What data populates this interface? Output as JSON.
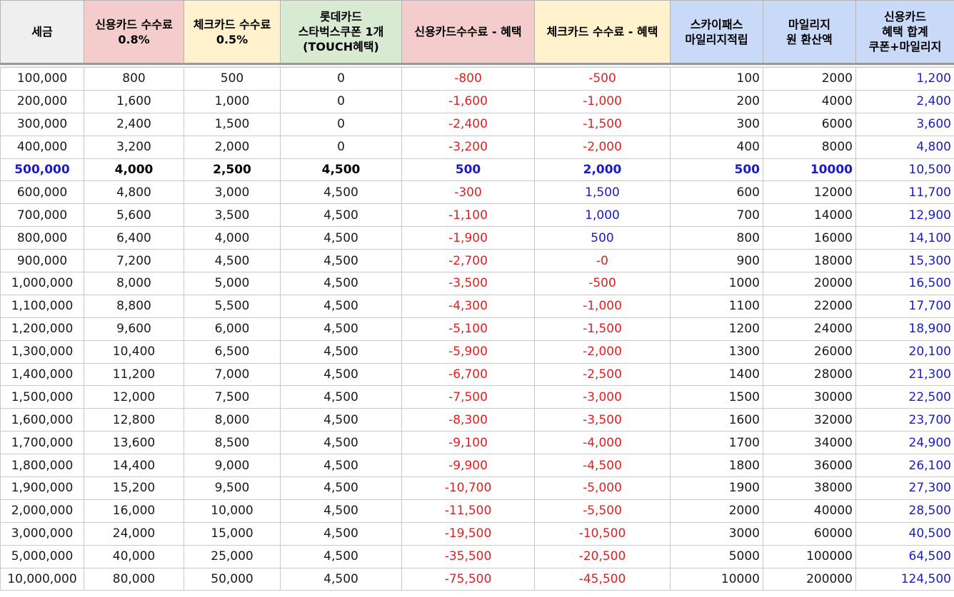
{
  "header": {
    "bg_colors": [
      "#efefef",
      "#f4cccc",
      "#fff2cc",
      "#d9ead3",
      "#f4cccc",
      "#fff2cc",
      "#c9daf8",
      "#c9daf8",
      "#c9daf8"
    ],
    "columns": [
      {
        "lines": [
          "세금"
        ]
      },
      {
        "lines": [
          "신용카드 수수료",
          "0.8%"
        ]
      },
      {
        "lines": [
          "체크카드 수수료",
          "0.5%"
        ]
      },
      {
        "lines": [
          "롯데카드",
          "스타벅스쿠폰 1개",
          "(TOUCH혜택)"
        ]
      },
      {
        "lines": [
          "신용카드수수료 - 혜택"
        ]
      },
      {
        "lines": [
          "체크카드 수수료 - 혜택"
        ]
      },
      {
        "lines": [
          "스카이패스",
          "마일리지적립"
        ]
      },
      {
        "lines": [
          "마일리지",
          "원 환산액"
        ]
      },
      {
        "lines": [
          "신용카드",
          "혜택 합계",
          "쿠폰+마일리지"
        ]
      }
    ]
  },
  "rows": [
    [
      "100,000",
      "800",
      "500",
      "0",
      "-800",
      "-500",
      "100",
      "2000",
      "1,200"
    ],
    [
      "200,000",
      "1,600",
      "1,000",
      "0",
      "-1,600",
      "-1,000",
      "200",
      "4000",
      "2,400"
    ],
    [
      "300,000",
      "2,400",
      "1,500",
      "0",
      "-2,400",
      "-1,500",
      "300",
      "6000",
      "3,600"
    ],
    [
      "400,000",
      "3,200",
      "2,000",
      "0",
      "-3,200",
      "-2,000",
      "400",
      "8000",
      "4,800"
    ],
    [
      "500,000",
      "4,000",
      "2,500",
      "4,500",
      "500",
      "2,000",
      "500",
      "10000",
      "10,500"
    ],
    [
      "600,000",
      "4,800",
      "3,000",
      "4,500",
      "-300",
      "1,500",
      "600",
      "12000",
      "11,700"
    ],
    [
      "700,000",
      "5,600",
      "3,500",
      "4,500",
      "-1,100",
      "1,000",
      "700",
      "14000",
      "12,900"
    ],
    [
      "800,000",
      "6,400",
      "4,000",
      "4,500",
      "-1,900",
      "500",
      "800",
      "16000",
      "14,100"
    ],
    [
      "900,000",
      "7,200",
      "4,500",
      "4,500",
      "-2,700",
      "-0",
      "900",
      "18000",
      "15,300"
    ],
    [
      "1,000,000",
      "8,000",
      "5,000",
      "4,500",
      "-3,500",
      "-500",
      "1000",
      "20000",
      "16,500"
    ],
    [
      "1,100,000",
      "8,800",
      "5,500",
      "4,500",
      "-4,300",
      "-1,000",
      "1100",
      "22000",
      "17,700"
    ],
    [
      "1,200,000",
      "9,600",
      "6,000",
      "4,500",
      "-5,100",
      "-1,500",
      "1200",
      "24000",
      "18,900"
    ],
    [
      "1,300,000",
      "10,400",
      "6,500",
      "4,500",
      "-5,900",
      "-2,000",
      "1300",
      "26000",
      "20,100"
    ],
    [
      "1,400,000",
      "11,200",
      "7,000",
      "4,500",
      "-6,700",
      "-2,500",
      "1400",
      "28000",
      "21,300"
    ],
    [
      "1,500,000",
      "12,000",
      "7,500",
      "4,500",
      "-7,500",
      "-3,000",
      "1500",
      "30000",
      "22,500"
    ],
    [
      "1,600,000",
      "12,800",
      "8,000",
      "4,500",
      "-8,300",
      "-3,500",
      "1600",
      "32000",
      "23,700"
    ],
    [
      "1,700,000",
      "13,600",
      "8,500",
      "4,500",
      "-9,100",
      "-4,000",
      "1700",
      "34000",
      "24,900"
    ],
    [
      "1,800,000",
      "14,400",
      "9,000",
      "4,500",
      "-9,900",
      "-4,500",
      "1800",
      "36000",
      "26,100"
    ],
    [
      "1,900,000",
      "15,200",
      "9,500",
      "4,500",
      "-10,700",
      "-5,000",
      "1900",
      "38000",
      "27,300"
    ],
    [
      "2,000,000",
      "16,000",
      "10,000",
      "4,500",
      "-11,500",
      "-5,500",
      "2000",
      "40000",
      "28,500"
    ],
    [
      "3,000,000",
      "24,000",
      "15,000",
      "4,500",
      "-19,500",
      "-10,500",
      "3000",
      "60000",
      "40,500"
    ],
    [
      "5,000,000",
      "40,000",
      "25,000",
      "4,500",
      "-35,500",
      "-20,500",
      "5000",
      "100000",
      "64,500"
    ],
    [
      "10,000,000",
      "80,000",
      "50,000",
      "4,500",
      "-75,500",
      "-45,500",
      "10000",
      "200000",
      "124,500"
    ]
  ],
  "highlight_row": 4,
  "colors": {
    "negative": "#e02020",
    "positive_blue": "#1a1acc"
  }
}
